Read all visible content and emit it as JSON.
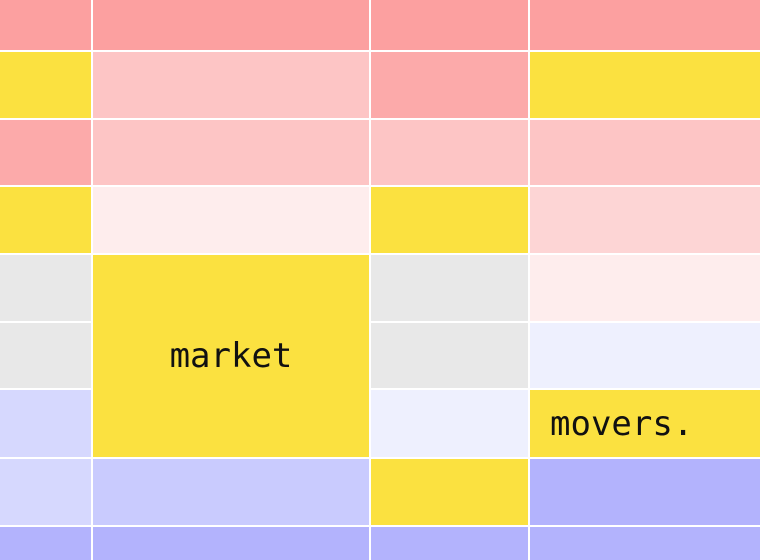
{
  "palette": {
    "red_strong": "#fca0a0",
    "red_mid": "#fcaaaa",
    "red_soft": "#fdc5c5",
    "red_light": "#fdd5d5",
    "red_pale": "#feeded",
    "yellow": "#fbe140",
    "gray": "#e8e8e8",
    "lavender_pale": "#eef0fe",
    "lavender_light": "#d6d8fe",
    "lavender_mid": "#c9cbfe",
    "lavender_strong": "#b3b3fd",
    "grid_line": "#ffffff"
  },
  "labels": {
    "market": "market",
    "movers": "movers."
  }
}
